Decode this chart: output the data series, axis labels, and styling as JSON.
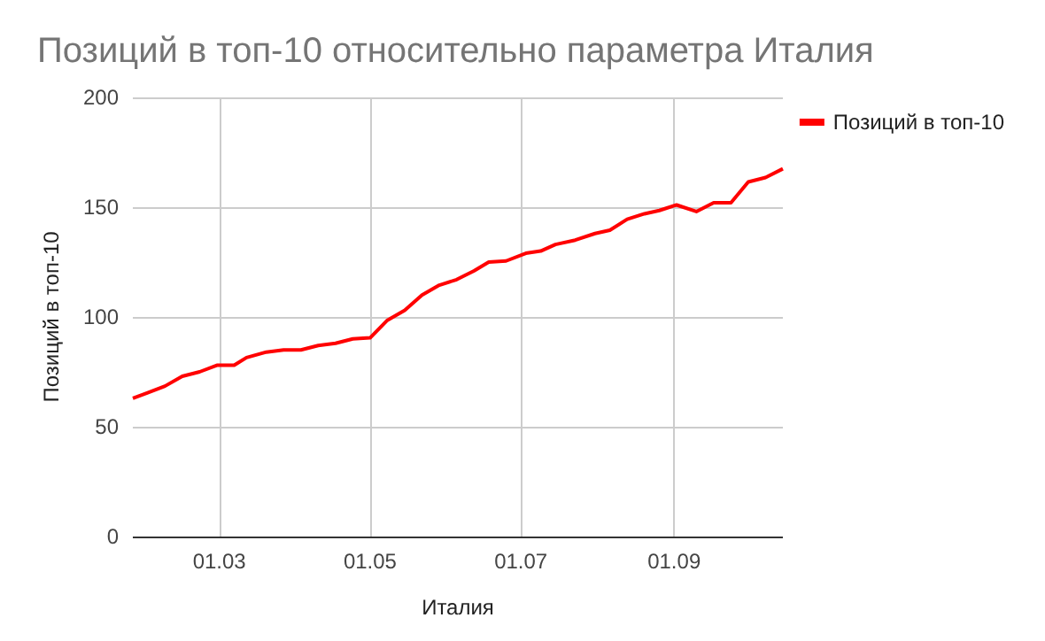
{
  "chart_data": {
    "type": "line",
    "title": "Позиций в топ-10 относительно параметра Италия",
    "xlabel": "Италия",
    "ylabel": "Позиций в топ-10",
    "x": [
      "--01-25",
      "--01-31",
      "--02-07",
      "--02-14",
      "--02-21",
      "--02-28",
      "--03-07",
      "--03-12",
      "--03-20",
      "--03-27",
      "--04-03",
      "--04-10",
      "--04-17",
      "--04-24",
      "--05-01",
      "--05-08",
      "--05-15",
      "--05-22",
      "--05-29",
      "--06-05",
      "--06-12",
      "--06-18",
      "--06-25",
      "--07-03",
      "--07-09",
      "--07-15",
      "--07-23",
      "--07-31",
      "--08-06",
      "--08-13",
      "--08-20",
      "--08-26",
      "--09-02",
      "--09-10",
      "--09-17",
      "--09-24",
      "--10-01",
      "--10-08",
      "--10-15"
    ],
    "series": [
      {
        "name": "Позиций в топ-10",
        "color": "#ff0000",
        "values": [
          63,
          65.5,
          68.5,
          73,
          75,
          78,
          78,
          81.5,
          84,
          85,
          85,
          87,
          88,
          90,
          90.5,
          98.5,
          103,
          110,
          114.5,
          117,
          121,
          125,
          125.5,
          129,
          130,
          133,
          135,
          138,
          139.5,
          144.5,
          147,
          148.5,
          151,
          148,
          152,
          152,
          161.5,
          163.5,
          167.5
        ]
      }
    ],
    "xlim": [
      "--01-25",
      "--10-15"
    ],
    "xticks": [
      {
        "value": "--03-01",
        "label": "01.03"
      },
      {
        "value": "--05-01",
        "label": "01.05"
      },
      {
        "value": "--07-01",
        "label": "01.07"
      },
      {
        "value": "--09-01",
        "label": "01.09"
      }
    ],
    "ylim": [
      0,
      200
    ],
    "yticks": [
      0,
      50,
      100,
      150,
      200
    ],
    "grid": true,
    "legend": "top right",
    "marker": "none",
    "line_style": "solid"
  }
}
